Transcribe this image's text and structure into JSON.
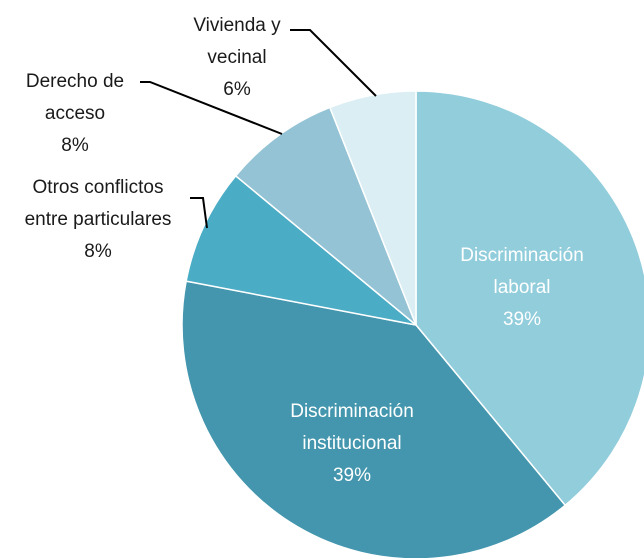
{
  "chart_data": {
    "type": "pie",
    "categories": [
      "Discriminación laboral",
      "Discriminación institucional",
      "Otros conflictos entre particulares",
      "Derecho de acceso",
      "Vivienda y vecinal"
    ],
    "values": [
      39,
      39,
      8,
      8,
      6
    ],
    "value_labels": [
      "39%",
      "39%",
      "8%",
      "8%",
      "6%"
    ],
    "colors": [
      "#92cddc",
      "#4396ad",
      "#4bacc6",
      "#93c3d4",
      "#daeef3"
    ]
  }
}
